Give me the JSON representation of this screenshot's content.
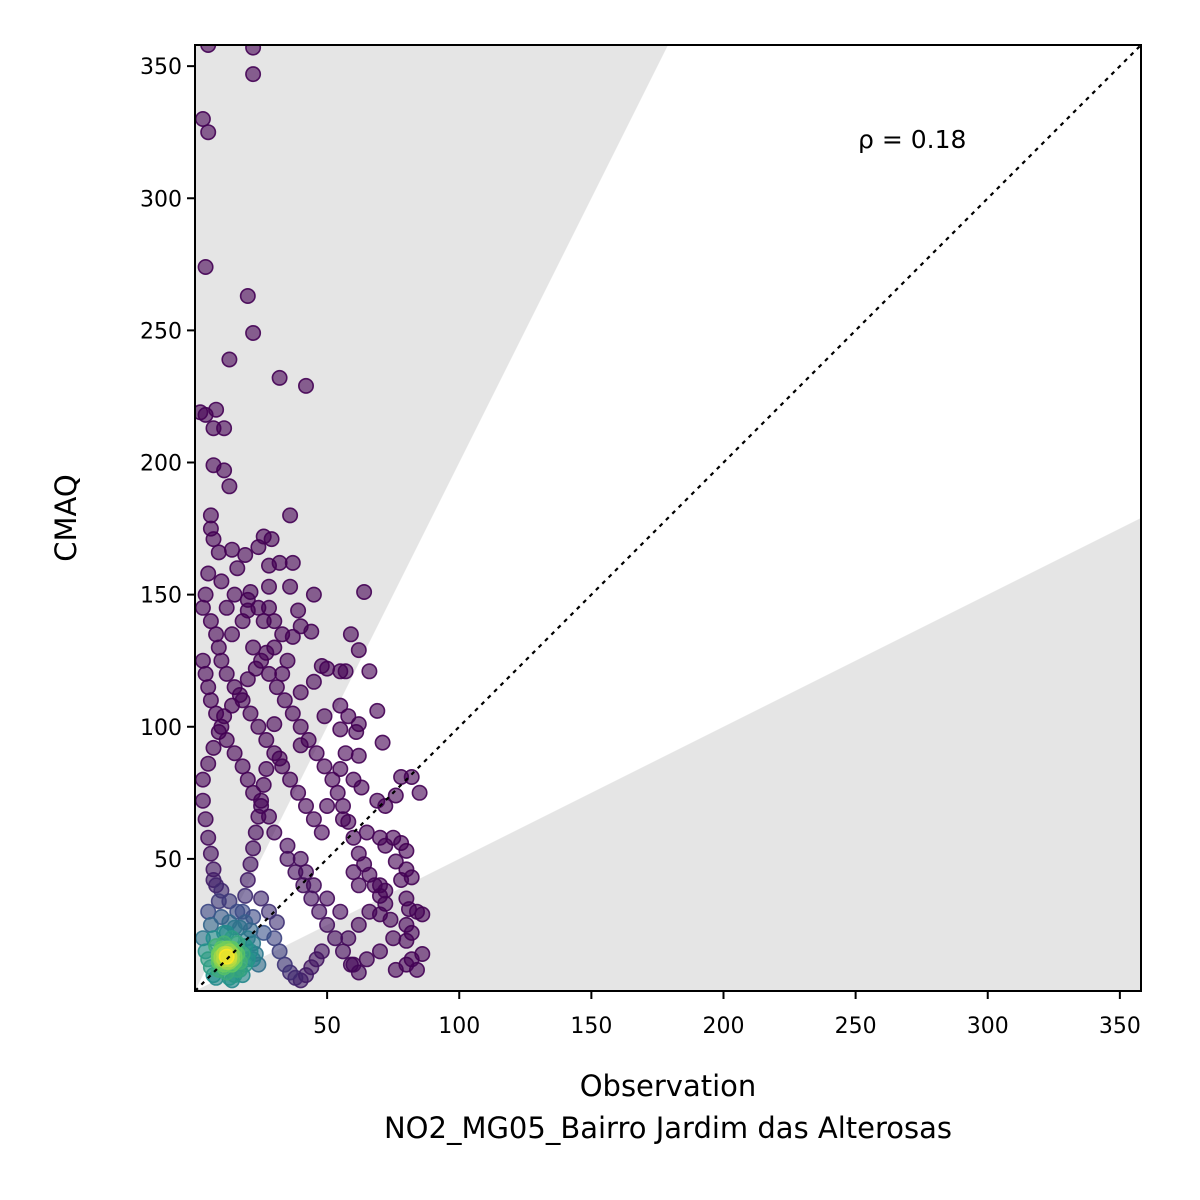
{
  "chart_data": {
    "type": "scatter",
    "title": "",
    "xlabel": "Observation",
    "xlabel_sub": "NO2_MG05_Bairro Jardim das Alterosas",
    "ylabel": "CMAQ",
    "xlim": [
      0,
      358
    ],
    "ylim": [
      0,
      358
    ],
    "xticks": [
      50,
      100,
      150,
      200,
      250,
      300,
      350
    ],
    "yticks": [
      50,
      100,
      150,
      200,
      250,
      300,
      350
    ],
    "annotation": "ρ = 0.18",
    "grid": false,
    "colormap": "viridis",
    "reference_line": {
      "style": "dotted",
      "slope": 1
    },
    "shaded_factor_regions": [
      {
        "label": "",
        "lower_slope": 2,
        "color": "#e5e5e5"
      },
      {
        "label": "",
        "upper_slope": 0.5,
        "color": "#e5e5e5"
      }
    ],
    "points": [
      [
        5,
        358
      ],
      [
        22,
        357
      ],
      [
        22,
        347
      ],
      [
        3,
        330
      ],
      [
        5,
        325
      ],
      [
        4,
        274
      ],
      [
        20,
        263
      ],
      [
        22,
        249
      ],
      [
        13,
        239
      ],
      [
        32,
        232
      ],
      [
        42,
        229
      ],
      [
        2,
        219
      ],
      [
        8,
        220
      ],
      [
        4,
        218
      ],
      [
        7,
        213
      ],
      [
        11,
        213
      ],
      [
        7,
        199
      ],
      [
        11,
        197
      ],
      [
        13,
        191
      ],
      [
        6,
        180
      ],
      [
        36,
        180
      ],
      [
        6,
        175
      ],
      [
        7,
        171
      ],
      [
        29,
        171
      ],
      [
        26,
        172
      ],
      [
        24,
        168
      ],
      [
        14,
        167
      ],
      [
        9,
        166
      ],
      [
        19,
        165
      ],
      [
        32,
        162
      ],
      [
        37,
        162
      ],
      [
        28,
        161
      ],
      [
        16,
        160
      ],
      [
        36,
        153
      ],
      [
        21,
        151
      ],
      [
        28,
        153
      ],
      [
        45,
        150
      ],
      [
        64,
        151
      ],
      [
        3,
        145
      ],
      [
        28,
        145
      ],
      [
        39,
        144
      ],
      [
        12,
        145
      ],
      [
        20,
        144
      ],
      [
        26,
        140
      ],
      [
        40,
        138
      ],
      [
        44,
        136
      ],
      [
        59,
        135
      ],
      [
        37,
        134
      ],
      [
        62,
        129
      ],
      [
        35,
        125
      ],
      [
        48,
        123
      ],
      [
        50,
        122
      ],
      [
        55,
        121
      ],
      [
        57,
        121
      ],
      [
        66,
        121
      ],
      [
        33,
        120
      ],
      [
        45,
        117
      ],
      [
        40,
        113
      ],
      [
        55,
        108
      ],
      [
        49,
        104
      ],
      [
        58,
        104
      ],
      [
        62,
        101
      ],
      [
        69,
        106
      ],
      [
        30,
        101
      ],
      [
        55,
        99
      ],
      [
        61,
        98
      ],
      [
        71,
        94
      ],
      [
        40,
        93
      ],
      [
        57,
        90
      ],
      [
        62,
        89
      ],
      [
        32,
        88
      ],
      [
        55,
        84
      ],
      [
        60,
        80
      ],
      [
        63,
        77
      ],
      [
        78,
        81
      ],
      [
        82,
        81
      ],
      [
        76,
        74
      ],
      [
        85,
        75
      ],
      [
        69,
        72
      ],
      [
        72,
        70
      ],
      [
        50,
        70
      ],
      [
        56,
        65
      ],
      [
        65,
        60
      ],
      [
        70,
        58
      ],
      [
        75,
        58
      ],
      [
        78,
        56
      ],
      [
        72,
        55
      ],
      [
        80,
        53
      ],
      [
        76,
        49
      ],
      [
        80,
        46
      ],
      [
        60,
        45
      ],
      [
        62,
        40
      ],
      [
        70,
        40
      ],
      [
        78,
        42
      ],
      [
        82,
        43
      ],
      [
        72,
        38
      ],
      [
        80,
        35
      ],
      [
        84,
        30
      ],
      [
        81,
        31
      ],
      [
        86,
        29
      ],
      [
        70,
        29
      ],
      [
        74,
        27
      ],
      [
        80,
        25
      ],
      [
        82,
        22
      ],
      [
        75,
        20
      ],
      [
        80,
        19
      ],
      [
        86,
        14
      ],
      [
        82,
        12
      ],
      [
        80,
        10
      ],
      [
        84,
        8
      ],
      [
        76,
        8
      ],
      [
        65,
        12
      ],
      [
        70,
        15
      ],
      [
        60,
        10
      ],
      [
        58,
        20
      ],
      [
        62,
        25
      ],
      [
        66,
        30
      ],
      [
        55,
        30
      ],
      [
        50,
        35
      ],
      [
        45,
        40
      ],
      [
        42,
        45
      ],
      [
        40,
        50
      ],
      [
        35,
        55
      ],
      [
        30,
        60
      ],
      [
        28,
        66
      ],
      [
        25,
        70
      ],
      [
        22,
        75
      ],
      [
        20,
        80
      ],
      [
        18,
        85
      ],
      [
        15,
        90
      ],
      [
        12,
        95
      ],
      [
        10,
        100
      ],
      [
        8,
        105
      ],
      [
        6,
        110
      ],
      [
        5,
        115
      ],
      [
        4,
        120
      ],
      [
        3,
        125
      ],
      [
        9,
        130
      ],
      [
        14,
        135
      ],
      [
        18,
        140
      ],
      [
        22,
        130
      ],
      [
        25,
        125
      ],
      [
        28,
        120
      ],
      [
        31,
        115
      ],
      [
        34,
        110
      ],
      [
        37,
        105
      ],
      [
        40,
        100
      ],
      [
        43,
        95
      ],
      [
        46,
        90
      ],
      [
        49,
        85
      ],
      [
        52,
        80
      ],
      [
        54,
        75
      ],
      [
        56,
        70
      ],
      [
        58,
        64
      ],
      [
        60,
        58
      ],
      [
        62,
        52
      ],
      [
        64,
        48
      ],
      [
        66,
        44
      ],
      [
        68,
        40
      ],
      [
        70,
        36
      ],
      [
        72,
        33
      ],
      [
        48,
        60
      ],
      [
        45,
        65
      ],
      [
        42,
        70
      ],
      [
        39,
        75
      ],
      [
        36,
        80
      ],
      [
        33,
        85
      ],
      [
        30,
        90
      ],
      [
        27,
        95
      ],
      [
        24,
        100
      ],
      [
        21,
        105
      ],
      [
        18,
        110
      ],
      [
        15,
        115
      ],
      [
        12,
        120
      ],
      [
        10,
        125
      ],
      [
        8,
        135
      ],
      [
        6,
        140
      ],
      [
        4,
        150
      ],
      [
        5,
        158
      ],
      [
        10,
        155
      ],
      [
        15,
        150
      ],
      [
        20,
        148
      ],
      [
        24,
        145
      ],
      [
        30,
        140
      ],
      [
        33,
        135
      ],
      [
        30,
        130
      ],
      [
        27,
        128
      ],
      [
        23,
        122
      ],
      [
        20,
        118
      ],
      [
        17,
        112
      ],
      [
        14,
        108
      ],
      [
        11,
        104
      ],
      [
        9,
        98
      ],
      [
        7,
        92
      ],
      [
        5,
        86
      ],
      [
        3,
        80
      ],
      [
        3,
        72
      ],
      [
        4,
        65
      ],
      [
        5,
        58
      ],
      [
        6,
        52
      ],
      [
        7,
        46
      ],
      [
        8,
        40
      ],
      [
        9,
        34
      ],
      [
        10,
        28
      ],
      [
        11,
        22
      ],
      [
        12,
        16
      ],
      [
        13,
        12
      ],
      [
        14,
        10
      ],
      [
        15,
        13
      ],
      [
        16,
        18
      ],
      [
        17,
        24
      ],
      [
        18,
        30
      ],
      [
        19,
        36
      ],
      [
        20,
        42
      ],
      [
        21,
        48
      ],
      [
        22,
        54
      ],
      [
        23,
        60
      ],
      [
        24,
        66
      ],
      [
        25,
        72
      ],
      [
        26,
        78
      ],
      [
        27,
        84
      ],
      [
        35,
        50
      ],
      [
        38,
        45
      ],
      [
        41,
        40
      ],
      [
        44,
        35
      ],
      [
        47,
        30
      ],
      [
        50,
        25
      ],
      [
        53,
        20
      ],
      [
        56,
        15
      ],
      [
        59,
        10
      ],
      [
        62,
        7
      ],
      [
        30,
        20
      ],
      [
        32,
        15
      ],
      [
        34,
        10
      ],
      [
        36,
        7
      ],
      [
        38,
        5
      ],
      [
        40,
        4
      ],
      [
        42,
        6
      ],
      [
        44,
        9
      ],
      [
        46,
        12
      ],
      [
        48,
        15
      ],
      [
        25,
        35
      ],
      [
        28,
        30
      ],
      [
        31,
        26
      ],
      [
        26,
        22
      ],
      [
        22,
        28
      ],
      [
        19,
        26
      ],
      [
        16,
        30
      ],
      [
        13,
        34
      ],
      [
        10,
        38
      ],
      [
        7,
        42
      ],
      [
        5,
        30
      ],
      [
        6,
        25
      ],
      [
        7,
        20
      ],
      [
        8,
        17
      ],
      [
        9,
        14
      ],
      [
        10,
        11
      ],
      [
        11,
        9
      ],
      [
        12,
        7
      ],
      [
        13,
        5
      ],
      [
        14,
        4
      ],
      [
        15,
        6
      ],
      [
        16,
        8
      ],
      [
        17,
        11
      ],
      [
        18,
        14
      ],
      [
        19,
        17
      ],
      [
        20,
        20
      ],
      [
        21,
        23
      ],
      [
        22,
        18
      ],
      [
        23,
        14
      ],
      [
        24,
        10
      ],
      [
        3,
        20
      ],
      [
        4,
        15
      ],
      [
        5,
        12
      ],
      [
        6,
        9
      ],
      [
        7,
        6
      ],
      [
        8,
        5
      ],
      [
        9,
        8
      ],
      [
        10,
        15
      ],
      [
        11,
        18
      ],
      [
        12,
        22
      ],
      [
        13,
        26
      ],
      [
        14,
        20
      ],
      [
        15,
        24
      ],
      [
        16,
        14
      ],
      [
        17,
        8
      ],
      [
        18,
        6
      ],
      [
        19,
        10
      ],
      [
        20,
        12
      ],
      [
        21,
        15
      ],
      [
        22,
        12
      ],
      [
        10,
        13
      ],
      [
        11,
        12
      ],
      [
        12,
        14
      ],
      [
        13,
        15
      ],
      [
        14,
        12
      ],
      [
        12,
        11
      ],
      [
        11,
        14
      ],
      [
        13,
        13
      ],
      [
        12,
        13
      ],
      [
        10,
        12
      ],
      [
        9,
        11
      ],
      [
        14,
        14
      ],
      [
        15,
        11
      ],
      [
        11,
        10
      ],
      [
        13,
        11
      ],
      [
        12,
        16
      ],
      [
        10,
        16
      ],
      [
        14,
        16
      ],
      [
        9,
        13
      ],
      [
        15,
        15
      ]
    ]
  }
}
